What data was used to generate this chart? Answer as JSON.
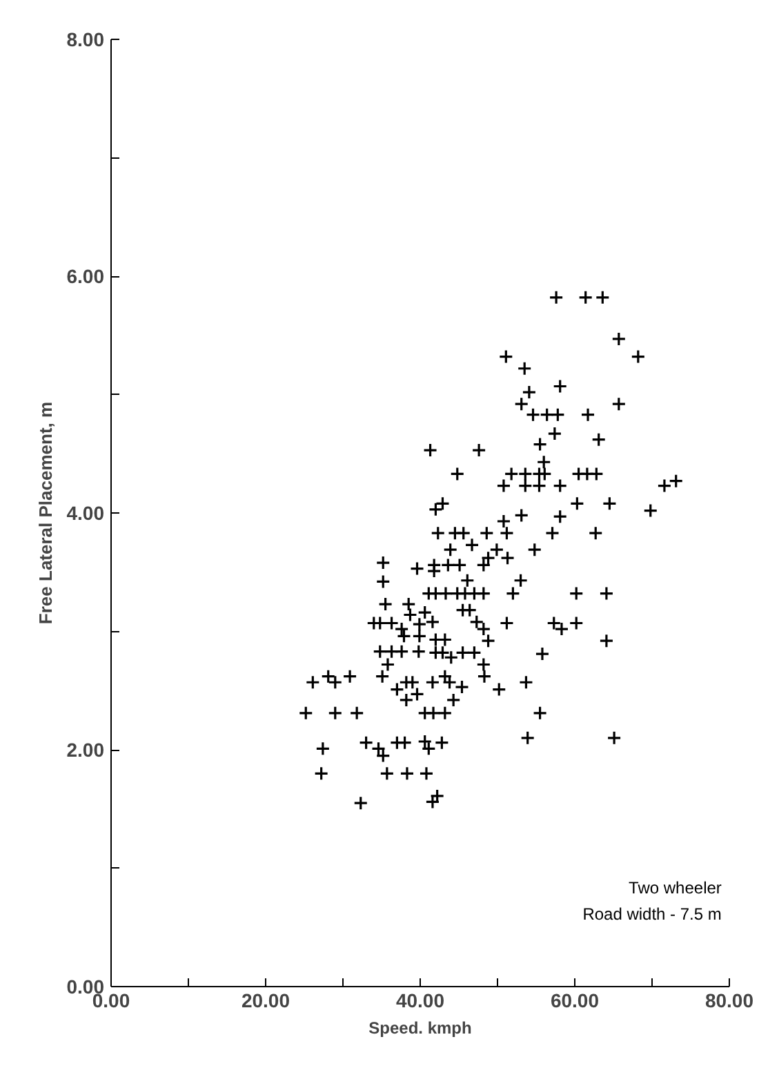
{
  "chart_data": {
    "type": "scatter",
    "xlabel": "Speed. kmph",
    "ylabel": "Free Lateral Placement, m",
    "annotations": [
      "Two wheeler",
      "Road width - 7.5 m"
    ],
    "xlim": [
      0,
      80
    ],
    "ylim": [
      0,
      8
    ],
    "xticks": [
      {
        "value": 0,
        "label": "0.00"
      },
      {
        "value": 10,
        "label": null
      },
      {
        "value": 20,
        "label": "20.00"
      },
      {
        "value": 30,
        "label": null
      },
      {
        "value": 40,
        "label": "40.00"
      },
      {
        "value": 50,
        "label": null
      },
      {
        "value": 60,
        "label": "60.00"
      },
      {
        "value": 70,
        "label": null
      },
      {
        "value": 80,
        "label": "80.00"
      }
    ],
    "yticks": [
      {
        "value": 0,
        "label": "0.00"
      },
      {
        "value": 1,
        "label": null
      },
      {
        "value": 2,
        "label": "2.00"
      },
      {
        "value": 3,
        "label": null
      },
      {
        "value": 4,
        "label": "4.00"
      },
      {
        "value": 5,
        "label": null
      },
      {
        "value": 6,
        "label": "6.00"
      },
      {
        "value": 7,
        "label": null
      },
      {
        "value": 8,
        "label": "8.00"
      }
    ],
    "grid": false,
    "marker": "cross",
    "series": [
      {
        "color": "#000000",
        "x": [
          57.6,
          61.4,
          63.6,
          65.7,
          68.2,
          51.1,
          53.5,
          54.1,
          58.1,
          53.1,
          65.7,
          54.6,
          56.4,
          57.8,
          61.7,
          57.4,
          63.1,
          55.5,
          41.3,
          47.6,
          56.0,
          44.8,
          51.8,
          53.6,
          55.4,
          56.1,
          60.5,
          61.6,
          62.8,
          50.8,
          53.6,
          55.4,
          58.1,
          71.6,
          73.1,
          42.0,
          42.9,
          50.8,
          53.1,
          58.1,
          60.3,
          64.5,
          69.8,
          42.3,
          44.5,
          45.6,
          48.6,
          51.2,
          57.1,
          62.7,
          43.9,
          46.7,
          49.9,
          54.8,
          48.8,
          51.3,
          41.8,
          41.8,
          43.6,
          45.1,
          48.2,
          46.1,
          53.0,
          41.1,
          42.0,
          43.3,
          44.8,
          45.8,
          47.0,
          48.2,
          52.0,
          60.2,
          64.1,
          40.6,
          45.5,
          46.4,
          41.6,
          47.3,
          48.2,
          51.2,
          57.3,
          58.3,
          60.2,
          48.8,
          64.1,
          42.0,
          43.2,
          42.0,
          42.9,
          44.0,
          45.5,
          47.0,
          48.2,
          48.3,
          55.8,
          43.2,
          43.8,
          45.4,
          41.6,
          50.2,
          53.7,
          44.3,
          40.6,
          41.7,
          43.2,
          55.5,
          40.6,
          41.1,
          42.8,
          53.9,
          65.1,
          40.8,
          41.6,
          42.2,
          35.2,
          35.2,
          39.6,
          35.5,
          38.5,
          38.7,
          34.0,
          34.8,
          36.3,
          37.6,
          37.9,
          39.9,
          39.9,
          34.8,
          36.3,
          37.6,
          39.8,
          35.8,
          35.1,
          26.1,
          28.1,
          29.0,
          30.9,
          37.0,
          38.2,
          39.0,
          38.2,
          39.6,
          25.2,
          29.0,
          31.8,
          27.4,
          27.2,
          33.0,
          34.6,
          35.2,
          37.0,
          38.0,
          35.7,
          38.3,
          32.3
        ],
        "values": [
          5.82,
          5.82,
          5.82,
          5.47,
          5.32,
          5.32,
          5.22,
          5.02,
          5.07,
          4.92,
          4.92,
          4.83,
          4.83,
          4.83,
          4.83,
          4.67,
          4.62,
          4.58,
          4.53,
          4.53,
          4.43,
          4.33,
          4.33,
          4.33,
          4.33,
          4.33,
          4.33,
          4.33,
          4.33,
          4.23,
          4.23,
          4.23,
          4.23,
          4.23,
          4.27,
          4.03,
          4.08,
          3.93,
          3.98,
          3.97,
          4.08,
          4.08,
          4.02,
          3.83,
          3.83,
          3.83,
          3.83,
          3.83,
          3.83,
          3.83,
          3.69,
          3.73,
          3.69,
          3.69,
          3.62,
          3.62,
          3.56,
          3.51,
          3.56,
          3.56,
          3.56,
          3.43,
          3.43,
          3.32,
          3.32,
          3.32,
          3.32,
          3.32,
          3.32,
          3.32,
          3.32,
          3.32,
          3.32,
          3.16,
          3.18,
          3.18,
          3.08,
          3.08,
          3.02,
          3.07,
          3.07,
          3.02,
          3.07,
          2.92,
          2.92,
          2.93,
          2.93,
          2.82,
          2.82,
          2.78,
          2.82,
          2.82,
          2.72,
          2.62,
          2.81,
          2.62,
          2.57,
          2.53,
          2.57,
          2.51,
          2.57,
          2.42,
          2.31,
          2.31,
          2.31,
          2.31,
          2.07,
          2.01,
          2.06,
          2.1,
          2.1,
          1.8,
          1.56,
          1.61,
          3.58,
          3.42,
          3.53,
          3.23,
          3.23,
          3.14,
          3.07,
          3.07,
          3.07,
          3.02,
          2.96,
          2.96,
          3.06,
          2.83,
          2.83,
          2.83,
          2.83,
          2.72,
          2.62,
          2.57,
          2.62,
          2.57,
          2.62,
          2.51,
          2.57,
          2.57,
          2.42,
          2.47,
          2.31,
          2.31,
          2.31,
          2.01,
          1.8,
          2.06,
          2.01,
          1.95,
          2.06,
          2.06,
          1.8,
          1.8,
          1.55
        ]
      }
    ]
  }
}
